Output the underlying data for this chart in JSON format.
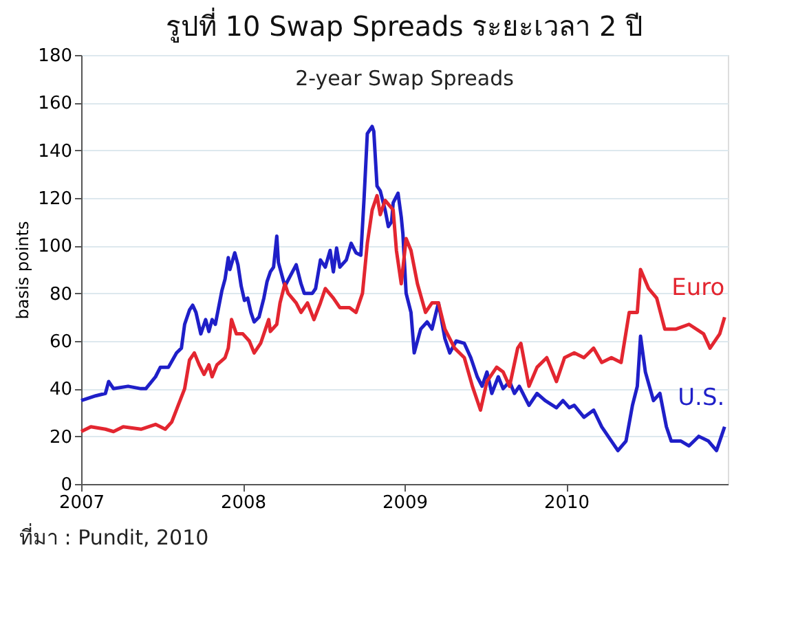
{
  "chart_data": {
    "type": "line",
    "title": "รูปที่ 10 Swap Spreads ระยะเวลา 2 ปี",
    "subtitle": "2-year Swap Spreads",
    "ylabel": "basis points",
    "xlim": [
      2007,
      2011
    ],
    "xticks": [
      2007,
      2008,
      2009,
      2010
    ],
    "ylim": [
      0,
      180
    ],
    "yticks": [
      0,
      20,
      40,
      60,
      80,
      100,
      120,
      140,
      160,
      180
    ],
    "grid": "y",
    "legend": false,
    "marker": "none",
    "line_style": "solid",
    "series": [
      {
        "name": "U.S.",
        "color": "#1f1fc8",
        "x": [
          2007.0,
          2007.09,
          2007.15,
          2007.17,
          2007.2,
          2007.29,
          2007.37,
          2007.4,
          2007.46,
          2007.49,
          2007.54,
          2007.59,
          2007.62,
          2007.64,
          2007.67,
          2007.69,
          2007.71,
          2007.74,
          2007.77,
          2007.79,
          2007.81,
          2007.83,
          2007.87,
          2007.89,
          2007.91,
          2007.92,
          2007.95,
          2007.97,
          2007.99,
          2008.01,
          2008.03,
          2008.05,
          2008.07,
          2008.1,
          2008.13,
          2008.15,
          2008.17,
          2008.19,
          2008.21,
          2008.22,
          2008.26,
          2008.33,
          2008.36,
          2008.38,
          2008.43,
          2008.45,
          2008.48,
          2008.51,
          2008.54,
          2008.56,
          2008.58,
          2008.6,
          2008.64,
          2008.67,
          2008.7,
          2008.73,
          2008.75,
          2008.77,
          2008.8,
          2008.81,
          2008.83,
          2008.85,
          2008.88,
          2008.9,
          2008.92,
          2008.93,
          2008.96,
          2008.98,
          2008.99,
          2009.01,
          2009.04,
          2009.06,
          2009.1,
          2009.14,
          2009.17,
          2009.21,
          2009.25,
          2009.28,
          2009.32,
          2009.37,
          2009.41,
          2009.45,
          2009.48,
          2009.51,
          2009.54,
          2009.58,
          2009.61,
          2009.65,
          2009.68,
          2009.71,
          2009.77,
          2009.82,
          2009.87,
          2009.94,
          2009.98,
          2010.02,
          2010.05,
          2010.11,
          2010.17,
          2010.22,
          2010.28,
          2010.32,
          2010.37,
          2010.41,
          2010.44,
          2010.46,
          2010.49,
          2010.54,
          2010.58,
          2010.62,
          2010.65,
          2010.71,
          2010.76,
          2010.82,
          2010.88,
          2010.93,
          2010.96,
          2010.98
        ],
        "values": [
          35,
          37,
          38,
          43,
          40,
          41,
          40,
          40,
          45,
          49,
          49,
          55,
          57,
          67,
          73,
          75,
          72,
          63,
          69,
          64,
          69,
          67,
          81,
          86,
          95,
          90,
          97,
          92,
          83,
          77,
          78,
          72,
          68,
          70,
          78,
          85,
          89,
          91,
          104,
          93,
          83,
          92,
          84,
          80,
          80,
          82,
          94,
          91,
          98,
          89,
          99,
          91,
          94,
          101,
          97,
          96,
          120,
          147,
          150,
          148,
          125,
          123,
          115,
          108,
          110,
          118,
          122,
          112,
          105,
          80,
          72,
          55,
          65,
          68,
          65,
          76,
          61,
          55,
          60,
          59,
          53,
          45,
          41,
          47,
          38,
          45,
          40,
          43,
          38,
          41,
          33,
          38,
          35,
          32,
          35,
          32,
          33,
          28,
          31,
          24,
          18,
          14,
          18,
          33,
          41,
          62,
          47,
          35,
          38,
          24,
          18,
          18,
          16,
          20,
          18,
          14,
          20,
          24
        ]
      },
      {
        "name": "Euro",
        "color": "#e32630",
        "x": [
          2007.0,
          2007.06,
          2007.15,
          2007.2,
          2007.26,
          2007.37,
          2007.46,
          2007.52,
          2007.56,
          2007.6,
          2007.64,
          2007.67,
          2007.7,
          2007.73,
          2007.76,
          2007.79,
          2007.81,
          2007.84,
          2007.89,
          2007.91,
          2007.93,
          2007.96,
          2008.0,
          2008.04,
          2008.07,
          2008.11,
          2008.16,
          2008.17,
          2008.21,
          2008.23,
          2008.26,
          2008.28,
          2008.33,
          2008.36,
          2008.4,
          2008.44,
          2008.48,
          2008.51,
          2008.56,
          2008.6,
          2008.66,
          2008.7,
          2008.74,
          2008.77,
          2008.8,
          2008.83,
          2008.85,
          2008.88,
          2008.93,
          2008.95,
          2008.98,
          2009.01,
          2009.04,
          2009.08,
          2009.13,
          2009.17,
          2009.21,
          2009.25,
          2009.31,
          2009.37,
          2009.42,
          2009.47,
          2009.51,
          2009.57,
          2009.61,
          2009.65,
          2009.7,
          2009.72,
          2009.77,
          2009.82,
          2009.88,
          2009.94,
          2009.99,
          2010.05,
          2010.11,
          2010.17,
          2010.22,
          2010.28,
          2010.34,
          2010.39,
          2010.44,
          2010.46,
          2010.51,
          2010.56,
          2010.61,
          2010.68,
          2010.76,
          2010.85,
          2010.89,
          2010.95,
          2010.98
        ],
        "values": [
          22,
          24,
          23,
          22,
          24,
          23,
          25,
          23,
          26,
          33,
          40,
          52,
          55,
          50,
          46,
          50,
          45,
          50,
          53,
          57,
          69,
          63,
          63,
          60,
          55,
          59,
          69,
          64,
          67,
          76,
          84,
          80,
          76,
          72,
          76,
          69,
          76,
          82,
          78,
          74,
          74,
          72,
          80,
          101,
          115,
          121,
          113,
          119,
          115,
          98,
          84,
          103,
          98,
          84,
          72,
          76,
          76,
          65,
          57,
          53,
          41,
          31,
          43,
          49,
          47,
          41,
          57,
          59,
          41,
          49,
          53,
          43,
          53,
          55,
          53,
          57,
          51,
          53,
          51,
          72,
          72,
          90,
          82,
          78,
          65,
          65,
          67,
          63,
          57,
          63,
          70
        ]
      }
    ],
    "annotations": [
      "ที่มา : Pundit, 2010"
    ]
  }
}
